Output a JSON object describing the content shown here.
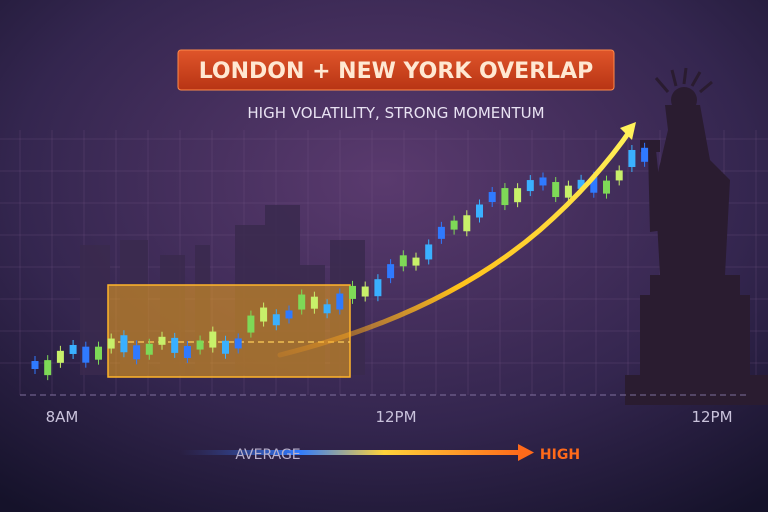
{
  "header": {
    "title": "LONDON + NEW YORK OVERLAP",
    "subtitle": "HIGH VOLATILITY, STRONG MOMENTUM"
  },
  "axis": {
    "labels": [
      "8AM",
      "12PM",
      "12PM"
    ]
  },
  "scale": {
    "low": "AVERAGE",
    "high": "HIGH"
  }
}
